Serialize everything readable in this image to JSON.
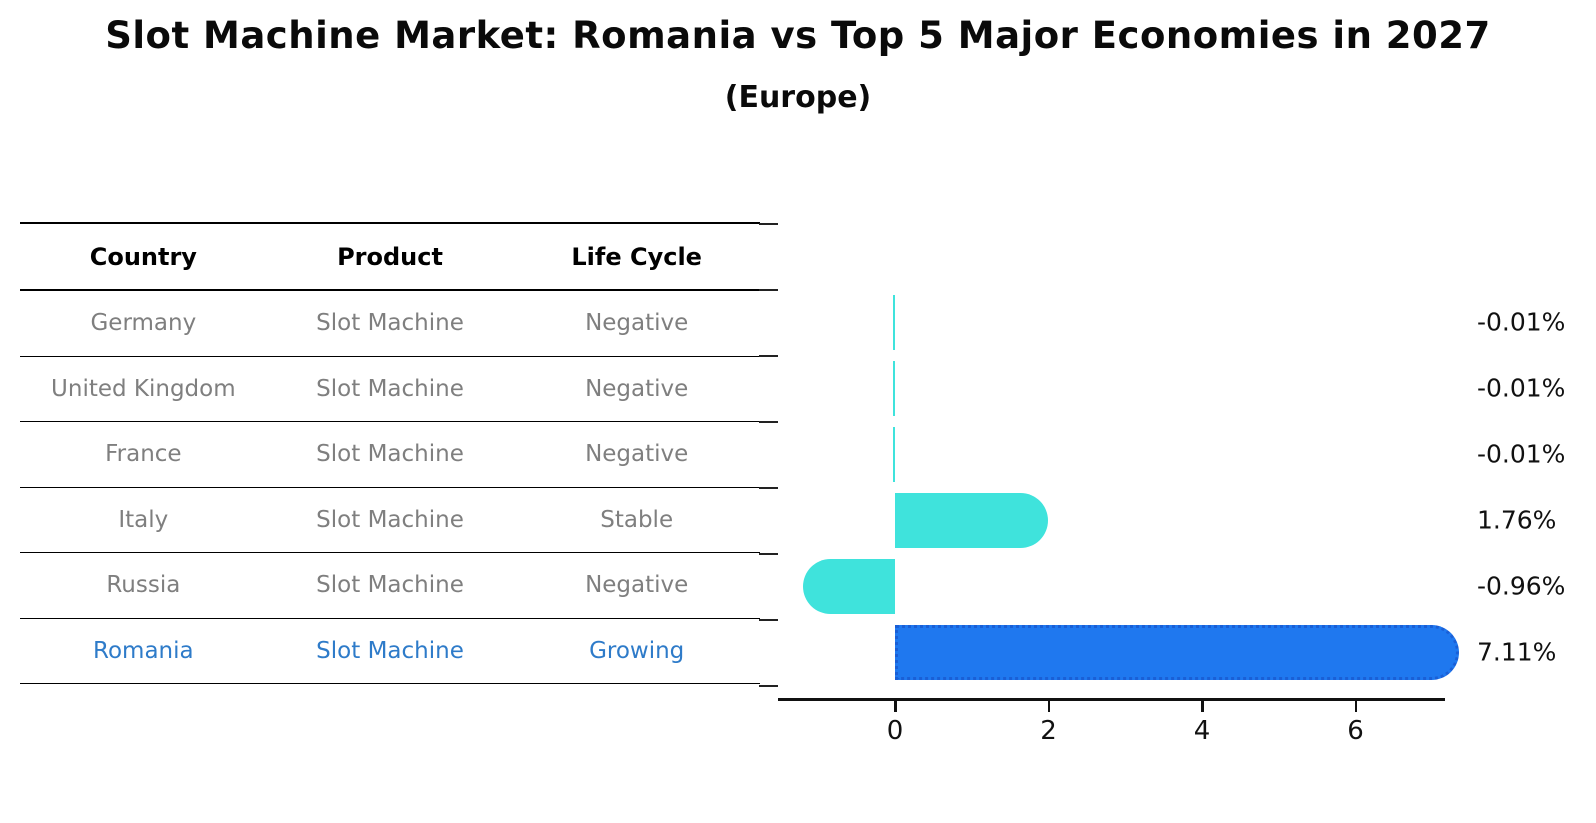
{
  "title": "Slot Machine Market: Romania vs Top 5 Major Economies in 2027",
  "subtitle": "(Europe)",
  "table": {
    "headers": [
      "Country",
      "Product",
      "Life Cycle"
    ],
    "rows": [
      {
        "country": "Germany",
        "product": "Slot Machine",
        "life_cycle": "Negative",
        "highlight": false
      },
      {
        "country": "United Kingdom",
        "product": "Slot Machine",
        "life_cycle": "Negative",
        "highlight": false
      },
      {
        "country": "France",
        "product": "Slot Machine",
        "life_cycle": "Negative",
        "highlight": false
      },
      {
        "country": "Italy",
        "product": "Slot Machine",
        "life_cycle": "Stable",
        "highlight": false
      },
      {
        "country": "Russia",
        "product": "Slot Machine",
        "life_cycle": "Negative",
        "highlight": false
      },
      {
        "country": "Romania",
        "product": "Slot Machine",
        "life_cycle": "Growing",
        "highlight": true
      }
    ]
  },
  "chart_data": {
    "type": "bar",
    "orientation": "horizontal",
    "title": "Slot Machine Market: Romania vs Top 5 Major Economies in 2027",
    "subtitle": "(Europe)",
    "categories": [
      "Germany",
      "United Kingdom",
      "France",
      "Italy",
      "Russia",
      "Romania"
    ],
    "values": [
      -0.01,
      -0.01,
      -0.01,
      1.76,
      -0.96,
      7.11
    ],
    "value_labels": [
      "-0.01%",
      "-0.01%",
      "-0.01%",
      "1.76%",
      "-0.96%",
      "7.11%"
    ],
    "x_ticks": [
      "0",
      "2",
      "4",
      "6"
    ],
    "x_tick_values": [
      0,
      2,
      4,
      6
    ],
    "xlim": [
      -1.5,
      7.2
    ],
    "highlight_category": "Romania",
    "grid": false,
    "legend": false,
    "ylabel": "",
    "xlabel": ""
  },
  "colors": {
    "bar_default": "#3FE3DC",
    "bar_highlight": "#1F78EF",
    "bar_highlight_border": "#1A5FD6",
    "row_text": "#7F7F7F",
    "highlight_text": "#2E7BC9",
    "header_text": "#000000",
    "axis_text": "#111111"
  }
}
